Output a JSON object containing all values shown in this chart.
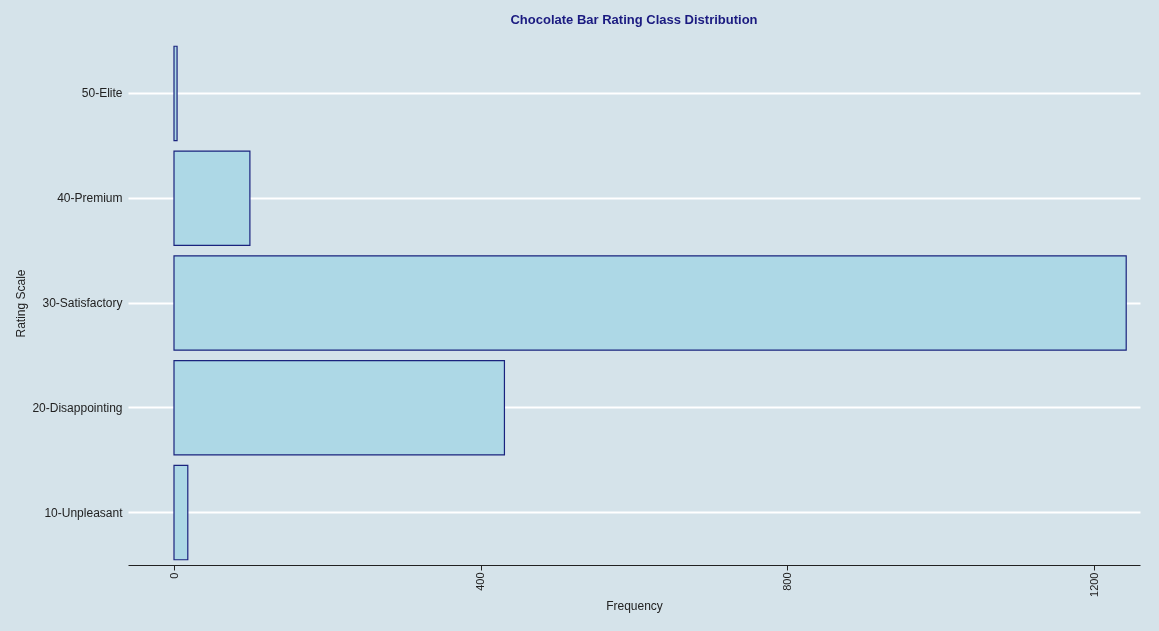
{
  "chart_data": {
    "type": "bar",
    "orientation": "horizontal",
    "title": "Chocolate Bar Rating Class Distribution",
    "xlabel": "Frequency",
    "ylabel": "Rating Scale",
    "categories": [
      "50-Elite",
      "40-Premium",
      "30-Satisfactory",
      "20-Disappointing",
      "10-Unpleasant"
    ],
    "values": [
      4,
      99,
      1242,
      431,
      18
    ],
    "color": "#add8e6",
    "xlim": [
      -60,
      1260
    ],
    "xticks": [
      0,
      400,
      800,
      1200
    ],
    "grid": "y"
  }
}
